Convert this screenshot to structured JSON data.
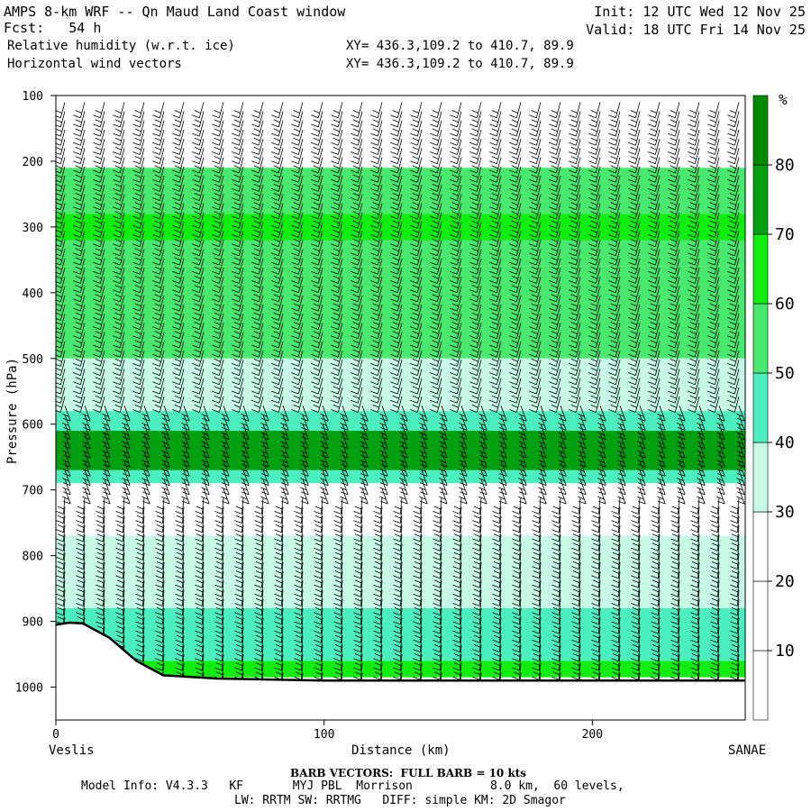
{
  "header": {
    "title": "AMPS 8-km WRF -- Qn Maud Land Coast window",
    "fcst": "Fcst:   54 h",
    "field1": "Relative humidity (w.r.t. ice)",
    "field2": "Horizontal wind vectors",
    "xy1": "XY= 436.3,109.2 to 410.7, 89.9",
    "xy2": "XY= 436.3,109.2 to 410.7, 89.9",
    "init": "Init: 12 UTC Wed 12 Nov 25",
    "valid": "Valid: 18 UTC Fri 14 Nov 25"
  },
  "footer": {
    "barb": "BARB VECTORS:  FULL BARB = 10 kts",
    "model": "Model Info: V4.3.3   KF       MYJ PBL  Morrison           8.0 km,  60 levels,",
    "physics": "LW: RRTM SW: RRTMG   DIFF: simple KM: 2D Smagor"
  },
  "chart_data": {
    "type": "heatmap",
    "title": "Relative humidity (w.r.t. ice)",
    "xlabel": "Distance (km)",
    "ylabel": "Pressure (hPa)",
    "x_tick_labels": [
      "0",
      "100",
      "200"
    ],
    "x_ticks": [
      0,
      100,
      200
    ],
    "xlim": [
      0,
      257
    ],
    "y_tick_labels": [
      "100",
      "200",
      "300",
      "400",
      "500",
      "600",
      "700",
      "800",
      "900",
      "1000"
    ],
    "y_ticks": [
      100,
      200,
      300,
      400,
      500,
      600,
      700,
      800,
      900,
      1000
    ],
    "ylim": [
      1050,
      100
    ],
    "endpoints": {
      "left": "Veslis",
      "right": "SANAE"
    },
    "colorbar": {
      "unit": "%",
      "levels": [
        10,
        20,
        30,
        40,
        50,
        60,
        70,
        80
      ],
      "labels": [
        "10",
        "20",
        "30",
        "40",
        "50",
        "60",
        "70",
        "80"
      ],
      "colors": [
        "#ffffff",
        "#ffffff",
        "#ffffff",
        "#c8fbe6",
        "#4cf0c0",
        "#49e86e",
        "#10ee10",
        "#00a010",
        "#008a00"
      ]
    },
    "rh_layers": [
      {
        "p_top": 100,
        "p_bottom": 210,
        "rh": 10
      },
      {
        "p_top": 210,
        "p_bottom": 280,
        "rh": 50
      },
      {
        "p_top": 280,
        "p_bottom": 320,
        "rh": 62
      },
      {
        "p_top": 320,
        "p_bottom": 360,
        "rh": 52
      },
      {
        "p_top": 360,
        "p_bottom": 500,
        "rh": 58
      },
      {
        "p_top": 500,
        "p_bottom": 580,
        "rh": 35
      },
      {
        "p_top": 580,
        "p_bottom": 610,
        "rh": 48
      },
      {
        "p_top": 610,
        "p_bottom": 670,
        "rh": 72
      },
      {
        "p_top": 670,
        "p_bottom": 690,
        "rh": 48
      },
      {
        "p_top": 690,
        "p_bottom": 770,
        "rh": 15
      },
      {
        "p_top": 770,
        "p_bottom": 840,
        "rh": 32
      },
      {
        "p_top": 840,
        "p_bottom": 880,
        "rh": 35
      },
      {
        "p_top": 880,
        "p_bottom": 960,
        "rh": 48
      },
      {
        "p_top": 960,
        "p_bottom": 985,
        "rh": 65
      }
    ],
    "terrain_surface_pressure": [
      {
        "x": 0,
        "p": 905
      },
      {
        "x": 5,
        "p": 902
      },
      {
        "x": 10,
        "p": 903
      },
      {
        "x": 20,
        "p": 925
      },
      {
        "x": 30,
        "p": 960
      },
      {
        "x": 40,
        "p": 982
      },
      {
        "x": 60,
        "p": 987
      },
      {
        "x": 100,
        "p": 990
      },
      {
        "x": 257,
        "p": 990
      }
    ]
  }
}
